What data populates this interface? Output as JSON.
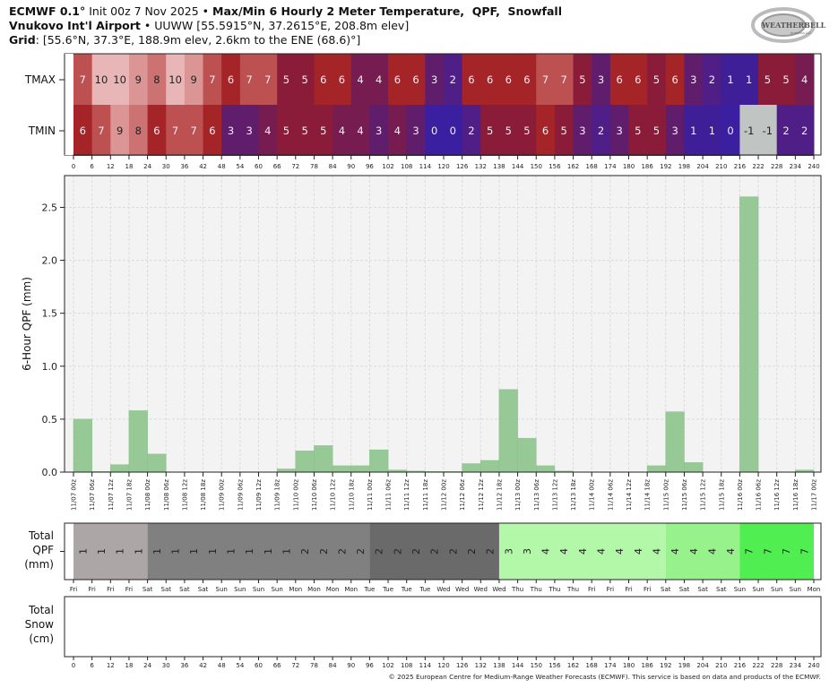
{
  "header": {
    "line1_model": "ECMWF 0.1°",
    "line1_init": " Init 00z 7 Nov 2025 • ",
    "line1_title": "Max/Min 6 Hourly 2 Meter Temperature,  QPF,  Snowfall",
    "line2_station": "Vnukovo Int'l Airport",
    "line2_info": " • UUWW [55.5915°N, 37.2615°E, 208.8m elev]",
    "line3_label": "Grid",
    "line3_info": ": [55.6°N, 37.3°E, 188.9m elev, 2.6km to the ENE (68.6)°]"
  },
  "logo": {
    "text": "WeatherBELL Analytics LLC"
  },
  "footer": "© 2025 European Centre for Medium-Range Weather Forecasts (ECMWF). This service is based on data and products of the ECMWF.",
  "chart_data": [
    {
      "type": "heatmap",
      "row_labels": [
        "TMAX",
        "TMIN"
      ],
      "x_ticks": [
        0,
        6,
        12,
        18,
        24,
        30,
        36,
        42,
        48,
        54,
        60,
        66,
        72,
        78,
        84,
        90,
        96,
        102,
        108,
        114,
        120,
        126,
        132,
        138,
        144,
        150,
        156,
        162,
        168,
        174,
        180,
        186,
        192,
        198,
        204,
        210,
        216,
        222,
        228,
        234,
        240
      ],
      "TMAX": [
        7,
        10,
        10,
        9,
        8,
        10,
        9,
        7,
        6,
        7,
        7,
        5,
        5,
        6,
        6,
        4,
        4,
        6,
        6,
        3,
        2,
        6,
        6,
        6,
        6,
        7,
        7,
        5,
        3,
        6,
        6,
        5,
        6,
        3,
        2,
        1,
        1,
        5,
        5,
        4
      ],
      "TMIN": [
        6,
        7,
        9,
        8,
        6,
        7,
        7,
        6,
        3,
        3,
        4,
        5,
        5,
        5,
        4,
        4,
        3,
        4,
        3,
        0,
        0,
        2,
        5,
        5,
        5,
        6,
        5,
        3,
        2,
        3,
        5,
        5,
        3,
        1,
        1,
        0,
        -1,
        -1,
        2,
        2
      ],
      "colors": {
        "cold": "#3a1fa0",
        "warm": "#a52428",
        "below_zero": "#c0c4c2"
      }
    },
    {
      "type": "bar",
      "ylabel": "6-Hour QPF (mm)",
      "ylim": [
        0,
        2.8
      ],
      "y_ticks": [
        "0.0",
        "0.5",
        "1.0",
        "1.5",
        "2.0",
        "2.5"
      ],
      "grid": true,
      "bar_color": "#97c997",
      "x_tick_labels": [
        "11/07 00z",
        "11/07 06z",
        "11/07 12z",
        "11/07 18z",
        "11/08 00z",
        "11/08 06z",
        "11/08 12z",
        "11/08 18z",
        "11/09 00z",
        "11/09 06z",
        "11/09 12z",
        "11/09 18z",
        "11/10 00z",
        "11/10 06z",
        "11/10 12z",
        "11/10 18z",
        "11/11 00z",
        "11/11 06z",
        "11/11 12z",
        "11/11 18z",
        "11/12 00z",
        "11/12 06z",
        "11/12 12z",
        "11/12 18z",
        "11/13 00z",
        "11/13 06z",
        "11/13 12z",
        "11/13 18z",
        "11/14 00z",
        "11/14 06z",
        "11/14 12z",
        "11/14 18z",
        "11/15 00z",
        "11/15 06z",
        "11/15 12z",
        "11/15 18z",
        "11/16 00z",
        "11/16 06z",
        "11/16 12z",
        "11/16 18z",
        "11/17 00z"
      ],
      "values": [
        0.5,
        0.005,
        0.07,
        0.58,
        0.17,
        0,
        0,
        0,
        0,
        0,
        0,
        0.03,
        0.2,
        0.25,
        0.06,
        0.06,
        0.21,
        0.02,
        0.01,
        0.005,
        0.005,
        0.08,
        0.11,
        0.78,
        0.32,
        0.06,
        0.01,
        0,
        0,
        0,
        0,
        0.06,
        0.57,
        0.09,
        0,
        0,
        2.6,
        0,
        0,
        0.02
      ]
    },
    {
      "type": "table",
      "ylabel": "Total\nQPF\n(mm)",
      "values": [
        1,
        1,
        1,
        1,
        1,
        1,
        1,
        1,
        1,
        1,
        1,
        1,
        2,
        2,
        2,
        2,
        2,
        2,
        2,
        2,
        2,
        2,
        2,
        3,
        3,
        4,
        4,
        4,
        4,
        4,
        4,
        4,
        4,
        4,
        4,
        4,
        7,
        7,
        7,
        7
      ],
      "segments": [
        {
          "count": 4,
          "color": "#aca6a6"
        },
        {
          "count": 12,
          "color": "#808080"
        },
        {
          "count": 7,
          "color": "#6a6a6a"
        },
        {
          "count": 9,
          "color": "#b3f7a9"
        },
        {
          "count": 4,
          "color": "#97f28b"
        },
        {
          "count": 4,
          "color": "#50ee50"
        }
      ],
      "day_labels": [
        "Fri",
        "Fri",
        "Fri",
        "Fri",
        "Sat",
        "Sat",
        "Sat",
        "Sat",
        "Sun",
        "Sun",
        "Sun",
        "Sun",
        "Mon",
        "Mon",
        "Mon",
        "Mon",
        "Tue",
        "Tue",
        "Tue",
        "Tue",
        "Wed",
        "Wed",
        "Wed",
        "Wed",
        "Thu",
        "Thu",
        "Thu",
        "Thu",
        "Fri",
        "Fri",
        "Fri",
        "Fri",
        "Sat",
        "Sat",
        "Sat",
        "Sat",
        "Sun",
        "Sun",
        "Sun",
        "Sun",
        "Mon"
      ]
    },
    {
      "type": "table",
      "ylabel": "Total\nSnow\n(cm)",
      "values": [],
      "x_ticks": [
        0,
        6,
        12,
        18,
        24,
        30,
        36,
        42,
        48,
        54,
        60,
        66,
        72,
        78,
        84,
        90,
        96,
        102,
        108,
        114,
        120,
        126,
        132,
        138,
        144,
        150,
        156,
        162,
        168,
        174,
        180,
        186,
        192,
        198,
        204,
        210,
        216,
        222,
        228,
        234,
        240
      ]
    }
  ]
}
